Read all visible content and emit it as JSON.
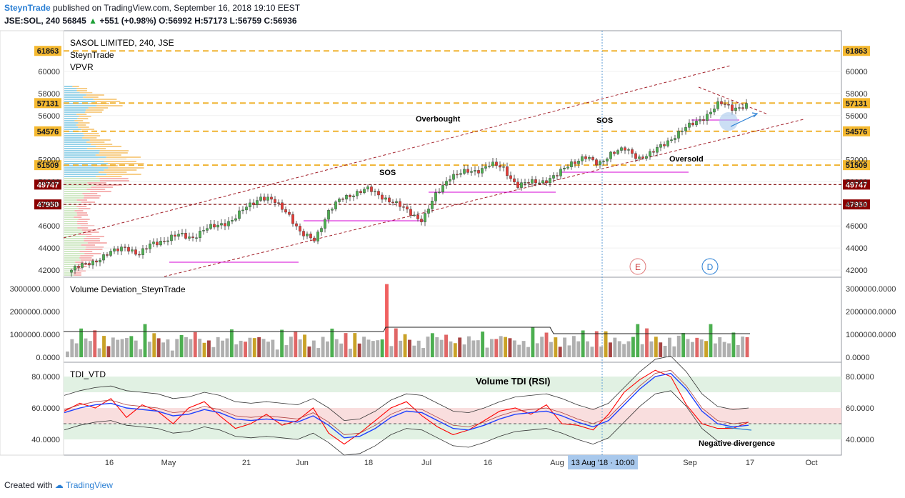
{
  "header": {
    "author": "SteynTrade",
    "published_text": "published on TradingView.com, September 16, 2018 19:10 EEST",
    "symbol_line": "JSE:SOL, 240",
    "last": "56845",
    "change": "+551 (+0.98%)",
    "open": "O:56992",
    "high": "H:57173",
    "low": "L:56759",
    "close": "C:56936",
    "up_arrow": "▲"
  },
  "footer": {
    "created_with": "Created with",
    "brand": "TradingView"
  },
  "legend": {
    "title": "SASOL LIMITED, 240, JSE",
    "line2": "SteynTrade",
    "line3": "VPVR"
  },
  "annotations": {
    "overbought": "Overbought",
    "sos1": "SOS",
    "sos2": "SOS",
    "oversold": "Oversold",
    "e_marker": "E",
    "d_marker": "D",
    "tdi_title": "Volume TDI (RSI)",
    "neg_div": "Negative divergence"
  },
  "colors": {
    "up": "#4caf50",
    "down": "#e53935",
    "level_orange": "#f0b432",
    "level_red": "#8b1a1a",
    "channel": "#a3202a",
    "magenta": "#d400d4",
    "accent_blue": "#2a7fd4",
    "tdi_red": "#ff0000",
    "tdi_blue": "#1e40ff"
  },
  "chart_data": [
    {
      "type": "candlestick",
      "title": "SASOL LIMITED, 240, JSE",
      "ylim": [
        41500,
        62500
      ],
      "y_ticks": [
        42000,
        44000,
        46000,
        48000,
        50000,
        52000,
        56000,
        58000,
        60000
      ],
      "y_tick_labels": [
        "42000",
        "44000",
        "46000",
        "48000",
        "50000",
        "52000",
        "56000",
        "58000",
        "60000"
      ],
      "price_levels": [
        {
          "value": 61863,
          "label": "61863",
          "style": "orange"
        },
        {
          "value": 57131,
          "label": "57131",
          "style": "orange"
        },
        {
          "value": 54576,
          "label": "54576",
          "style": "orange"
        },
        {
          "value": 51509,
          "label": "51509",
          "style": "orange"
        },
        {
          "value": 49747,
          "label": "49747",
          "style": "red"
        },
        {
          "value": 47950,
          "label": "47950",
          "style": "red"
        }
      ],
      "close_path": [
        42000,
        42500,
        43000,
        43600,
        44200,
        43300,
        44500,
        44700,
        45200,
        45000,
        45700,
        46200,
        46500,
        47800,
        48600,
        48200,
        47300,
        45200,
        44800,
        47200,
        48500,
        49000,
        49300,
        48700,
        48000,
        47300,
        46500,
        48800,
        50500,
        50800,
        51000,
        51600,
        51200,
        49700,
        49900,
        50100,
        50600,
        51700,
        52300,
        51500,
        52700,
        52900,
        52200,
        52600,
        53500,
        54500,
        55200,
        56000,
        57100,
        56700,
        56900
      ],
      "x_tick_labels": [
        "16",
        "May",
        "21",
        "Jun",
        "18",
        "Jul",
        "16",
        "Aug",
        "Sep",
        "17",
        "Oct"
      ],
      "crosshair_label": "13 Aug '18 · 10:00"
    },
    {
      "type": "bar",
      "title": "Volume Deviation_SteynTrade",
      "ylim": [
        0,
        3200000
      ],
      "y_tick_labels": [
        "3000000.0000",
        "2000000.0000",
        "1000000.0000",
        "0.0000"
      ]
    },
    {
      "type": "line",
      "title": "TDI_VTD",
      "ylim": [
        30,
        90
      ],
      "y_tick_labels": [
        "80.0000",
        "60.0000",
        "40.0000"
      ],
      "series": [
        {
          "values": [
            58,
            63,
            60,
            66,
            54,
            62,
            58,
            50,
            60,
            64,
            55,
            47,
            50,
            56,
            49,
            52,
            60,
            44,
            37,
            44,
            52,
            60,
            64,
            55,
            48,
            43,
            46,
            52,
            58,
            60,
            56,
            62,
            50,
            49,
            46,
            56,
            70,
            78,
            84,
            80,
            62,
            50,
            47,
            47,
            51
          ]
        },
        {
          "values": [
            57,
            60,
            62,
            63,
            60,
            59,
            58,
            55,
            56,
            59,
            57,
            53,
            52,
            53,
            52,
            51,
            55,
            49,
            41,
            42,
            47,
            54,
            58,
            57,
            52,
            47,
            46,
            49,
            53,
            56,
            57,
            58,
            55,
            51,
            48,
            52,
            62,
            72,
            80,
            82,
            72,
            58,
            50,
            48,
            49
          ]
        }
      ]
    }
  ]
}
